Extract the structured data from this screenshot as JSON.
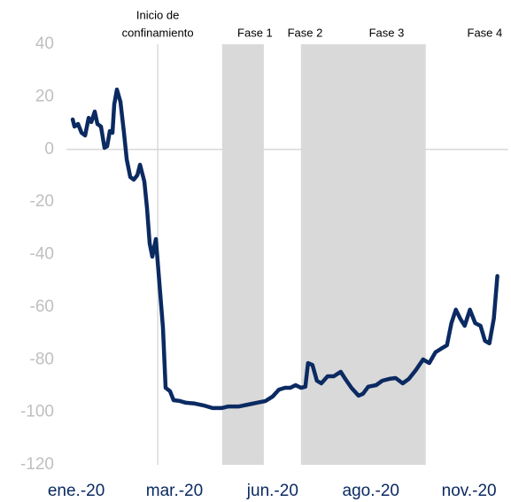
{
  "chart_data": {
    "type": "line",
    "color": "#0b2a62",
    "ylim": [
      -120,
      40
    ],
    "yticks": [
      40,
      20,
      0,
      -20,
      -40,
      -60,
      -80,
      -100,
      -120
    ],
    "xlim": [
      -0.1,
      4.4
    ],
    "xticks": [
      {
        "value": 0,
        "label": "ene.-20"
      },
      {
        "value": 1,
        "label": "mar.-20"
      },
      {
        "value": 2,
        "label": "jun.-20"
      },
      {
        "value": 3,
        "label": "ago.-20"
      },
      {
        "value": 4,
        "label": "nov.-20"
      }
    ],
    "zero_line": true,
    "shaded_spans": [
      [
        1.486,
        1.91
      ],
      [
        2.288,
        3.559
      ]
    ],
    "event_line": {
      "x": 0.83,
      "lines": [
        "Inicio de",
        "confinamiento"
      ]
    },
    "phases": [
      {
        "name": "Fase 1",
        "x": 1.82
      },
      {
        "name": "Fase 2",
        "x": 2.33
      },
      {
        "name": "Fase 3",
        "x": 3.16
      },
      {
        "name": "Fase 4",
        "x": 4.16
      }
    ],
    "x": [
      -0.036,
      -0.018,
      0.018,
      0.054,
      0.09,
      0.126,
      0.153,
      0.189,
      0.216,
      0.252,
      0.288,
      0.315,
      0.342,
      0.369,
      0.387,
      0.414,
      0.45,
      0.486,
      0.514,
      0.55,
      0.586,
      0.622,
      0.649,
      0.694,
      0.721,
      0.748,
      0.775,
      0.811,
      0.847,
      0.883,
      0.91,
      0.955,
      0.991,
      1.054,
      1.117,
      1.207,
      1.297,
      1.387,
      1.477,
      1.55,
      1.658,
      1.748,
      1.838,
      1.928,
      2.0,
      2.063,
      2.126,
      2.18,
      2.234,
      2.288,
      2.333,
      2.36,
      2.405,
      2.45,
      2.495,
      2.559,
      2.622,
      2.694,
      2.739,
      2.802,
      2.874,
      2.919,
      2.973,
      3.054,
      3.117,
      3.189,
      3.252,
      3.324,
      3.387,
      3.459,
      3.532,
      3.595,
      3.658,
      3.712,
      3.775,
      3.82,
      3.865,
      3.91,
      3.955,
      4.009,
      4.063,
      4.117,
      4.162,
      4.207,
      4.252,
      4.288
    ],
    "values": [
      11.4,
      8.7,
      9.7,
      6.3,
      5.3,
      12.0,
      10.4,
      14.4,
      9.7,
      8.7,
      0.6,
      1.2,
      7.0,
      6.3,
      17.1,
      22.8,
      18.1,
      6.3,
      -3.8,
      -10.5,
      -11.5,
      -9.8,
      -5.8,
      -12.2,
      -22.3,
      -35.8,
      -40.8,
      -34.1,
      -50.9,
      -67.8,
      -90.7,
      -92.0,
      -95.4,
      -95.7,
      -96.4,
      -96.7,
      -97.4,
      -98.4,
      -98.4,
      -97.8,
      -97.8,
      -97.1,
      -96.4,
      -95.7,
      -94.0,
      -91.4,
      -90.7,
      -90.7,
      -89.7,
      -90.7,
      -90.3,
      -81.3,
      -82.0,
      -88.0,
      -89.0,
      -86.3,
      -86.3,
      -84.6,
      -87.3,
      -90.7,
      -93.7,
      -93.0,
      -90.3,
      -89.7,
      -88.0,
      -87.3,
      -87.0,
      -89.0,
      -87.3,
      -83.9,
      -79.9,
      -81.3,
      -77.2,
      -75.9,
      -74.5,
      -66.1,
      -61.0,
      -64.4,
      -67.1,
      -61.0,
      -66.1,
      -67.1,
      -72.8,
      -73.8,
      -64.4,
      -48.2
    ]
  }
}
